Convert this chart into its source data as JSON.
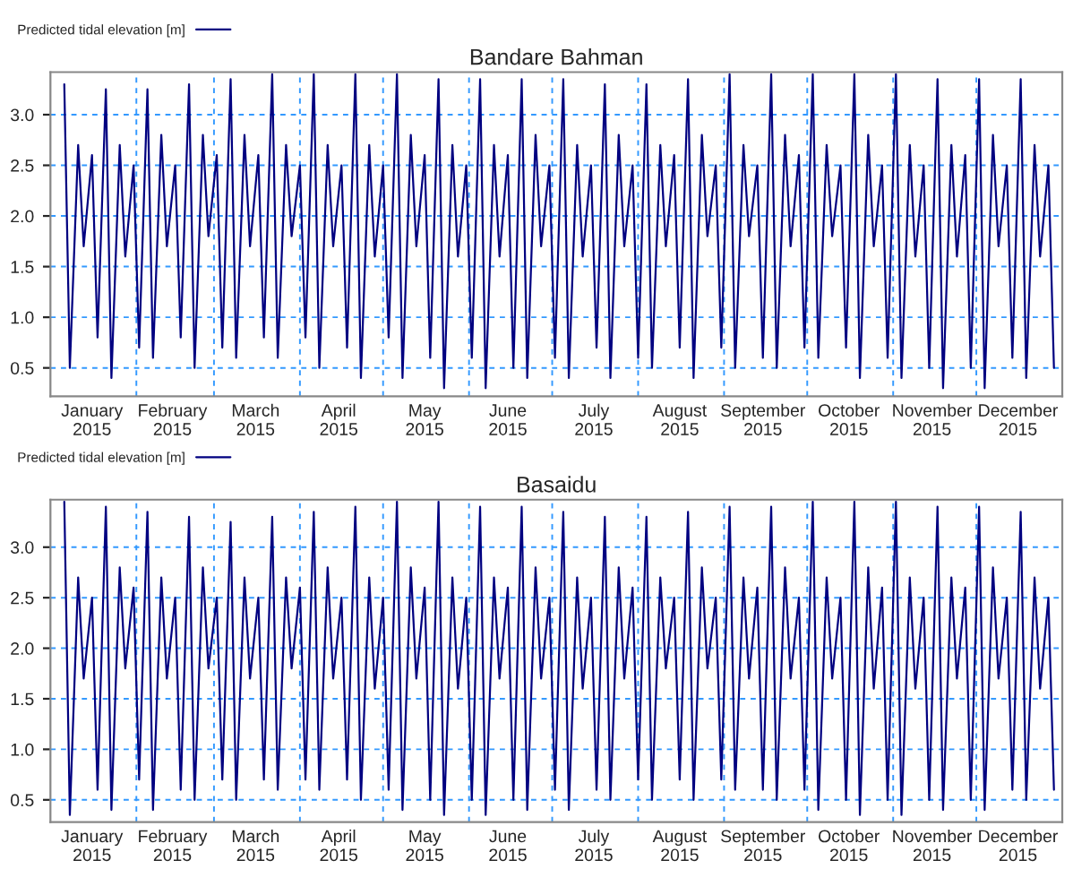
{
  "chart_data": [
    {
      "type": "line",
      "title": "Bandare Bahman",
      "legend": "top left",
      "grid": true,
      "marker": "none",
      "line_style": "solid",
      "xlim": [
        "2015-01-01",
        "2016-01-01"
      ],
      "ylim": [
        0.22,
        3.42
      ],
      "yticks": [
        {
          "value": 0.5,
          "label": "0.5"
        },
        {
          "value": 1.0,
          "label": "1.0"
        },
        {
          "value": 1.5,
          "label": "1.5"
        },
        {
          "value": 2.0,
          "label": "2.0"
        },
        {
          "value": 2.5,
          "label": "2.5"
        },
        {
          "value": 3.0,
          "label": "3.0"
        }
      ],
      "xticks": [
        {
          "value": "2015-01-16",
          "label": "January\n2015"
        },
        {
          "value": "2015-02-01",
          "label": null
        },
        {
          "value": "2015-02-14",
          "label": "February\n2015"
        },
        {
          "value": "2015-03-01",
          "label": null
        },
        {
          "value": "2015-03-16",
          "label": "March\n2015"
        },
        {
          "value": "2015-04-01",
          "label": null
        },
        {
          "value": "2015-04-15",
          "label": "April\n2015"
        },
        {
          "value": "2015-05-01",
          "label": null
        },
        {
          "value": "2015-05-16",
          "label": "May\n2015"
        },
        {
          "value": "2015-06-01",
          "label": null
        },
        {
          "value": "2015-06-15",
          "label": "June\n2015"
        },
        {
          "value": "2015-07-01",
          "label": null
        },
        {
          "value": "2015-07-16",
          "label": "July\n2015"
        },
        {
          "value": "2015-08-01",
          "label": null
        },
        {
          "value": "2015-08-16",
          "label": "August\n2015"
        },
        {
          "value": "2015-09-01",
          "label": null
        },
        {
          "value": "2015-09-15",
          "label": "September\n2015"
        },
        {
          "value": "2015-10-01",
          "label": null
        },
        {
          "value": "2015-10-16",
          "label": "October\n2015"
        },
        {
          "value": "2015-11-01",
          "label": null
        },
        {
          "value": "2015-11-15",
          "label": "November\n2015"
        },
        {
          "value": "2015-12-01",
          "label": null
        },
        {
          "value": "2015-12-16",
          "label": "December\n2015"
        }
      ],
      "x": [
        "2015-01-06",
        "2015-01-08",
        "2015-01-11",
        "2015-01-13",
        "2015-01-16",
        "2015-01-18",
        "2015-01-21",
        "2015-01-23",
        "2015-01-26",
        "2015-01-28",
        "2015-01-31",
        "2015-02-02",
        "2015-02-05",
        "2015-02-07",
        "2015-02-10",
        "2015-02-12",
        "2015-02-15",
        "2015-02-17",
        "2015-02-20",
        "2015-02-22",
        "2015-02-25",
        "2015-02-27",
        "2015-03-02",
        "2015-03-04",
        "2015-03-07",
        "2015-03-09",
        "2015-03-12",
        "2015-03-14",
        "2015-03-17",
        "2015-03-19",
        "2015-03-22",
        "2015-03-24",
        "2015-03-27",
        "2015-03-29",
        "2015-04-01",
        "2015-04-03",
        "2015-04-06",
        "2015-04-08",
        "2015-04-11",
        "2015-04-13",
        "2015-04-16",
        "2015-04-18",
        "2015-04-21",
        "2015-04-23",
        "2015-04-26",
        "2015-04-28",
        "2015-05-01",
        "2015-05-03",
        "2015-05-06",
        "2015-05-08",
        "2015-05-11",
        "2015-05-13",
        "2015-05-16",
        "2015-05-18",
        "2015-05-21",
        "2015-05-23",
        "2015-05-26",
        "2015-05-28",
        "2015-05-31",
        "2015-06-02",
        "2015-06-05",
        "2015-06-07",
        "2015-06-10",
        "2015-06-12",
        "2015-06-15",
        "2015-06-17",
        "2015-06-20",
        "2015-06-22",
        "2015-06-25",
        "2015-06-27",
        "2015-06-30",
        "2015-07-02",
        "2015-07-05",
        "2015-07-07",
        "2015-07-10",
        "2015-07-12",
        "2015-07-15",
        "2015-07-17",
        "2015-07-20",
        "2015-07-22",
        "2015-07-25",
        "2015-07-27",
        "2015-07-30",
        "2015-08-01",
        "2015-08-04",
        "2015-08-06",
        "2015-08-09",
        "2015-08-11",
        "2015-08-14",
        "2015-08-16",
        "2015-08-19",
        "2015-08-21",
        "2015-08-24",
        "2015-08-26",
        "2015-08-29",
        "2015-08-31",
        "2015-09-03",
        "2015-09-05",
        "2015-09-08",
        "2015-09-10",
        "2015-09-13",
        "2015-09-15",
        "2015-09-18",
        "2015-09-20",
        "2015-09-23",
        "2015-09-25",
        "2015-09-28",
        "2015-09-30",
        "2015-10-03",
        "2015-10-05",
        "2015-10-08",
        "2015-10-10",
        "2015-10-13",
        "2015-10-15",
        "2015-10-18",
        "2015-10-20",
        "2015-10-23",
        "2015-10-25",
        "2015-10-28",
        "2015-10-30",
        "2015-11-02",
        "2015-11-04",
        "2015-11-07",
        "2015-11-09",
        "2015-11-12",
        "2015-11-14",
        "2015-11-17",
        "2015-11-19",
        "2015-11-22",
        "2015-11-24",
        "2015-11-27",
        "2015-11-29",
        "2015-12-02",
        "2015-12-04",
        "2015-12-07",
        "2015-12-09",
        "2015-12-12",
        "2015-12-14",
        "2015-12-17",
        "2015-12-19",
        "2015-12-22",
        "2015-12-24",
        "2015-12-27",
        "2015-12-29"
      ],
      "series": [
        {
          "name": "Predicted tidal elevation [m]",
          "color": "#000080",
          "values": [
            3.3,
            0.5,
            2.7,
            1.7,
            2.6,
            0.8,
            3.25,
            0.4,
            2.7,
            1.6,
            2.5,
            0.7,
            3.25,
            0.6,
            2.8,
            1.7,
            2.5,
            0.8,
            3.3,
            0.5,
            2.8,
            1.8,
            2.6,
            0.7,
            3.35,
            0.6,
            2.8,
            1.7,
            2.6,
            0.8,
            3.4,
            0.6,
            2.7,
            1.8,
            2.5,
            0.8,
            3.4,
            0.5,
            2.7,
            1.7,
            2.5,
            0.7,
            3.4,
            0.4,
            2.7,
            1.6,
            2.5,
            0.8,
            3.4,
            0.4,
            2.8,
            1.7,
            2.6,
            0.6,
            3.35,
            0.3,
            2.7,
            1.6,
            2.5,
            0.6,
            3.35,
            0.3,
            2.7,
            1.6,
            2.6,
            0.5,
            3.35,
            0.4,
            2.8,
            1.7,
            2.5,
            0.6,
            3.35,
            0.4,
            2.7,
            1.6,
            2.5,
            0.7,
            3.3,
            0.4,
            2.8,
            1.7,
            2.5,
            0.6,
            3.3,
            0.5,
            2.7,
            1.7,
            2.6,
            0.7,
            3.35,
            0.4,
            2.8,
            1.8,
            2.5,
            0.7,
            3.4,
            0.5,
            2.7,
            1.8,
            2.5,
            0.6,
            3.4,
            0.5,
            2.8,
            1.7,
            2.6,
            0.7,
            3.4,
            0.6,
            2.7,
            1.8,
            2.5,
            0.7,
            3.4,
            0.4,
            2.8,
            1.7,
            2.5,
            0.6,
            3.4,
            0.4,
            2.7,
            1.6,
            2.5,
            0.5,
            3.35,
            0.3,
            2.7,
            1.6,
            2.6,
            0.5,
            3.35,
            0.3,
            2.8,
            1.7,
            2.5,
            0.6,
            3.35,
            0.4,
            2.7,
            1.6,
            2.5,
            0.5
          ]
        }
      ]
    },
    {
      "type": "line",
      "title": "Basaidu",
      "legend": "top left",
      "grid": true,
      "marker": "none",
      "line_style": "solid",
      "xlim": [
        "2015-01-01",
        "2016-01-01"
      ],
      "ylim": [
        0.28,
        3.47
      ],
      "yticks": [
        {
          "value": 0.5,
          "label": "0.5"
        },
        {
          "value": 1.0,
          "label": "1.0"
        },
        {
          "value": 1.5,
          "label": "1.5"
        },
        {
          "value": 2.0,
          "label": "2.0"
        },
        {
          "value": 2.5,
          "label": "2.5"
        },
        {
          "value": 3.0,
          "label": "3.0"
        }
      ],
      "xticks": [
        {
          "value": "2015-01-16",
          "label": "January\n2015"
        },
        {
          "value": "2015-02-01",
          "label": null
        },
        {
          "value": "2015-02-14",
          "label": "February\n2015"
        },
        {
          "value": "2015-03-01",
          "label": null
        },
        {
          "value": "2015-03-16",
          "label": "March\n2015"
        },
        {
          "value": "2015-04-01",
          "label": null
        },
        {
          "value": "2015-04-15",
          "label": "April\n2015"
        },
        {
          "value": "2015-05-01",
          "label": null
        },
        {
          "value": "2015-05-16",
          "label": "May\n2015"
        },
        {
          "value": "2015-06-01",
          "label": null
        },
        {
          "value": "2015-06-15",
          "label": "June\n2015"
        },
        {
          "value": "2015-07-01",
          "label": null
        },
        {
          "value": "2015-07-16",
          "label": "July\n2015"
        },
        {
          "value": "2015-08-01",
          "label": null
        },
        {
          "value": "2015-08-16",
          "label": "August\n2015"
        },
        {
          "value": "2015-09-01",
          "label": null
        },
        {
          "value": "2015-09-15",
          "label": "September\n2015"
        },
        {
          "value": "2015-10-01",
          "label": null
        },
        {
          "value": "2015-10-16",
          "label": "October\n2015"
        },
        {
          "value": "2015-11-01",
          "label": null
        },
        {
          "value": "2015-11-15",
          "label": "November\n2015"
        },
        {
          "value": "2015-12-01",
          "label": null
        },
        {
          "value": "2015-12-16",
          "label": "December\n2015"
        }
      ],
      "x": [
        "2015-01-06",
        "2015-01-08",
        "2015-01-11",
        "2015-01-13",
        "2015-01-16",
        "2015-01-18",
        "2015-01-21",
        "2015-01-23",
        "2015-01-26",
        "2015-01-28",
        "2015-01-31",
        "2015-02-02",
        "2015-02-05",
        "2015-02-07",
        "2015-02-10",
        "2015-02-12",
        "2015-02-15",
        "2015-02-17",
        "2015-02-20",
        "2015-02-22",
        "2015-02-25",
        "2015-02-27",
        "2015-03-02",
        "2015-03-04",
        "2015-03-07",
        "2015-03-09",
        "2015-03-12",
        "2015-03-14",
        "2015-03-17",
        "2015-03-19",
        "2015-03-22",
        "2015-03-24",
        "2015-03-27",
        "2015-03-29",
        "2015-04-01",
        "2015-04-03",
        "2015-04-06",
        "2015-04-08",
        "2015-04-11",
        "2015-04-13",
        "2015-04-16",
        "2015-04-18",
        "2015-04-21",
        "2015-04-23",
        "2015-04-26",
        "2015-04-28",
        "2015-05-01",
        "2015-05-03",
        "2015-05-06",
        "2015-05-08",
        "2015-05-11",
        "2015-05-13",
        "2015-05-16",
        "2015-05-18",
        "2015-05-21",
        "2015-05-23",
        "2015-05-26",
        "2015-05-28",
        "2015-05-31",
        "2015-06-02",
        "2015-06-05",
        "2015-06-07",
        "2015-06-10",
        "2015-06-12",
        "2015-06-15",
        "2015-06-17",
        "2015-06-20",
        "2015-06-22",
        "2015-06-25",
        "2015-06-27",
        "2015-06-30",
        "2015-07-02",
        "2015-07-05",
        "2015-07-07",
        "2015-07-10",
        "2015-07-12",
        "2015-07-15",
        "2015-07-17",
        "2015-07-20",
        "2015-07-22",
        "2015-07-25",
        "2015-07-27",
        "2015-07-30",
        "2015-08-01",
        "2015-08-04",
        "2015-08-06",
        "2015-08-09",
        "2015-08-11",
        "2015-08-14",
        "2015-08-16",
        "2015-08-19",
        "2015-08-21",
        "2015-08-24",
        "2015-08-26",
        "2015-08-29",
        "2015-08-31",
        "2015-09-03",
        "2015-09-05",
        "2015-09-08",
        "2015-09-10",
        "2015-09-13",
        "2015-09-15",
        "2015-09-18",
        "2015-09-20",
        "2015-09-23",
        "2015-09-25",
        "2015-09-28",
        "2015-09-30",
        "2015-10-03",
        "2015-10-05",
        "2015-10-08",
        "2015-10-10",
        "2015-10-13",
        "2015-10-15",
        "2015-10-18",
        "2015-10-20",
        "2015-10-23",
        "2015-10-25",
        "2015-10-28",
        "2015-10-30",
        "2015-11-02",
        "2015-11-04",
        "2015-11-07",
        "2015-11-09",
        "2015-11-12",
        "2015-11-14",
        "2015-11-17",
        "2015-11-19",
        "2015-11-22",
        "2015-11-24",
        "2015-11-27",
        "2015-11-29",
        "2015-12-02",
        "2015-12-04",
        "2015-12-07",
        "2015-12-09",
        "2015-12-12",
        "2015-12-14",
        "2015-12-17",
        "2015-12-19",
        "2015-12-22",
        "2015-12-24",
        "2015-12-27",
        "2015-12-29"
      ],
      "series": [
        {
          "name": "Predicted tidal elevation [m]",
          "color": "#000080",
          "values": [
            3.45,
            0.35,
            2.7,
            1.7,
            2.5,
            0.6,
            3.4,
            0.4,
            2.8,
            1.8,
            2.6,
            0.7,
            3.35,
            0.4,
            2.7,
            1.7,
            2.5,
            0.6,
            3.3,
            0.5,
            2.8,
            1.8,
            2.5,
            0.7,
            3.25,
            0.5,
            2.7,
            1.7,
            2.5,
            0.7,
            3.3,
            0.6,
            2.7,
            1.8,
            2.6,
            0.7,
            3.35,
            0.6,
            2.8,
            1.7,
            2.5,
            0.7,
            3.4,
            0.5,
            2.7,
            1.6,
            2.5,
            0.6,
            3.45,
            0.4,
            2.8,
            1.7,
            2.6,
            0.5,
            3.45,
            0.35,
            2.7,
            1.6,
            2.5,
            0.5,
            3.4,
            0.35,
            2.7,
            1.7,
            2.6,
            0.5,
            3.4,
            0.4,
            2.8,
            1.7,
            2.5,
            0.6,
            3.35,
            0.4,
            2.7,
            1.6,
            2.5,
            0.6,
            3.3,
            0.5,
            2.8,
            1.7,
            2.6,
            0.7,
            3.3,
            0.5,
            2.7,
            1.8,
            2.5,
            0.7,
            3.35,
            0.5,
            2.8,
            1.8,
            2.5,
            0.7,
            3.4,
            0.6,
            2.7,
            1.7,
            2.6,
            0.6,
            3.4,
            0.5,
            2.8,
            1.7,
            2.5,
            0.6,
            3.45,
            0.4,
            2.7,
            1.7,
            2.5,
            0.5,
            3.45,
            0.35,
            2.8,
            1.6,
            2.6,
            0.5,
            3.45,
            0.35,
            2.7,
            1.6,
            2.5,
            0.5,
            3.4,
            0.4,
            2.7,
            1.7,
            2.6,
            0.5,
            3.4,
            0.4,
            2.8,
            1.7,
            2.5,
            0.6,
            3.35,
            0.5,
            2.7,
            1.6,
            2.5,
            0.6
          ]
        }
      ]
    }
  ]
}
